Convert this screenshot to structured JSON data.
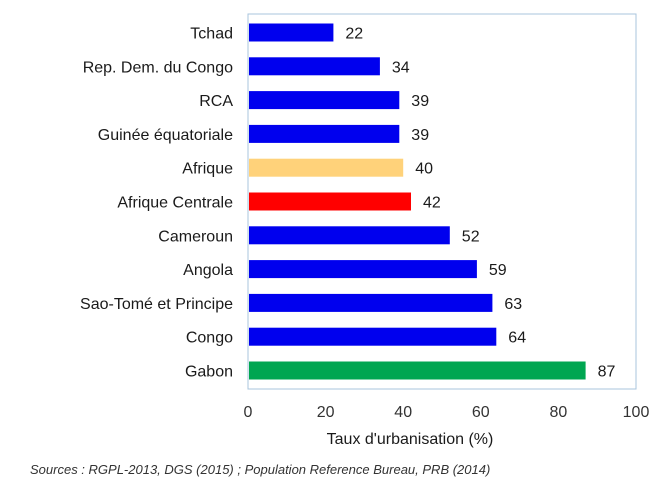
{
  "chart_data": {
    "type": "bar",
    "orientation": "horizontal",
    "categories": [
      "Tchad",
      "Rep. Dem. du Congo",
      "RCA",
      "Guinée équatoriale",
      "Afrique",
      "Afrique Centrale",
      "Cameroun",
      "Angola",
      "Sao-Tomé et Principe",
      "Congo",
      "Gabon"
    ],
    "values": [
      22,
      34,
      39,
      39,
      40,
      42,
      52,
      59,
      63,
      64,
      87
    ],
    "value_labels": [
      "22",
      "34",
      "39",
      "39",
      "40",
      "42",
      "52",
      "59",
      "63",
      "64",
      "87"
    ],
    "bar_colors": [
      "#0000ee",
      "#0000ee",
      "#0000ee",
      "#0000ee",
      "#ffd27a",
      "#ff0000",
      "#0000ee",
      "#0000ee",
      "#0000ee",
      "#0000ee",
      "#00a651"
    ],
    "xlim": [
      0,
      100
    ],
    "xticks": [
      "0",
      "20",
      "40",
      "60",
      "80",
      "100"
    ],
    "xlabel": "Taux d'urbanisation (%)",
    "ylabel": "",
    "title": "",
    "grid": false,
    "legend": "none",
    "source": "Sources : RGPL-2013, DGS (2015) ; Population Reference Bureau, PRB (2014)",
    "plot_border_color": "#a9c4dd"
  }
}
